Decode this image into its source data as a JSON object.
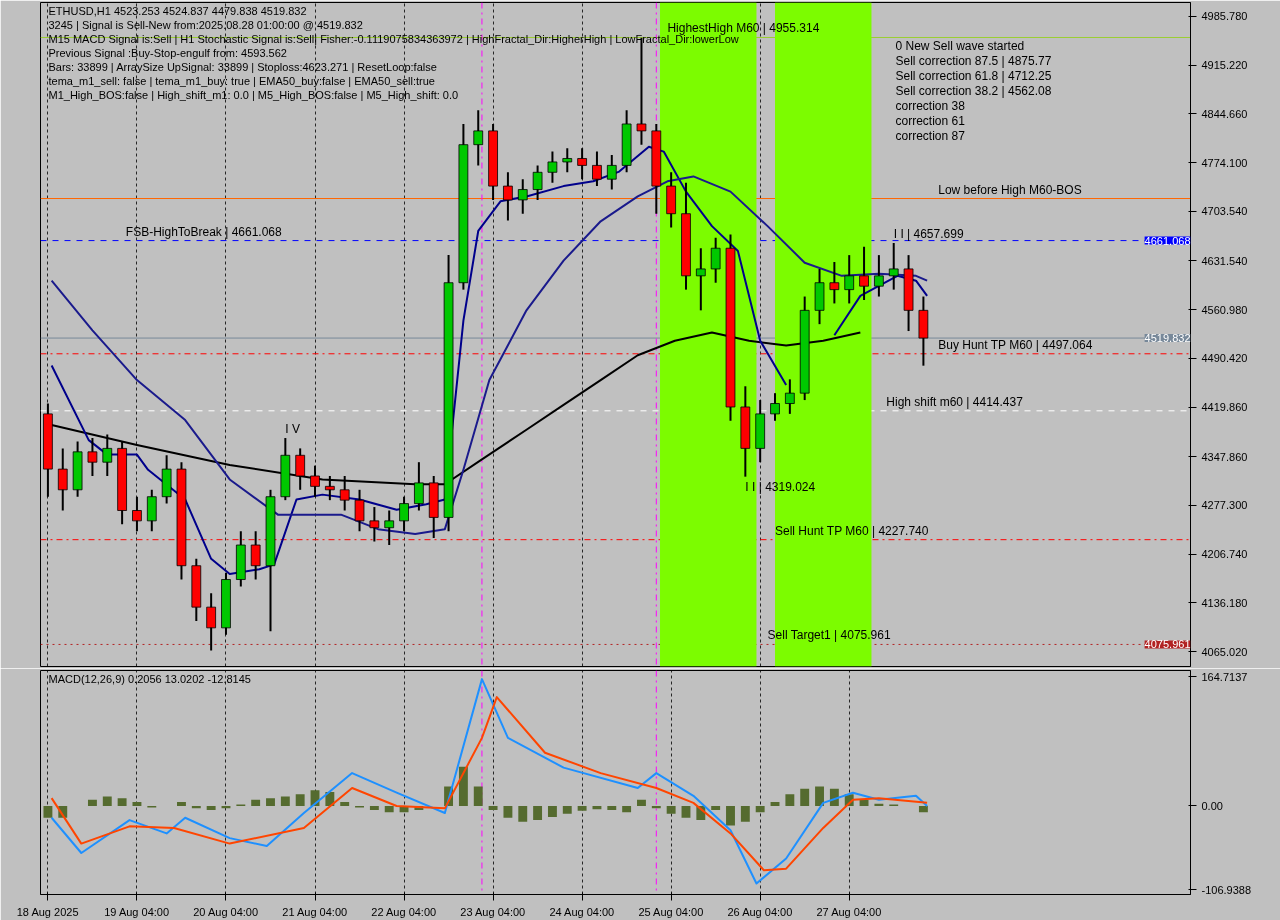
{
  "chart_data": [
    {
      "type": "candlestick",
      "title": "ETHUSD,H1  4523.253 4524.837 4479.838 4519.832",
      "x": [
        "2025-08-18T04:00",
        "2025-08-18T08:00",
        "2025-08-18T12:00",
        "2025-08-18T16:00",
        "2025-08-18T20:00",
        "2025-08-19T00:00",
        "2025-08-19T04:00",
        "2025-08-19T08:00",
        "2025-08-19T12:00",
        "2025-08-19T16:00",
        "2025-08-19T20:00",
        "2025-08-20T00:00",
        "2025-08-20T04:00",
        "2025-08-20T08:00",
        "2025-08-20T12:00",
        "2025-08-20T16:00",
        "2025-08-20T20:00",
        "2025-08-21T00:00",
        "2025-08-21T04:00",
        "2025-08-21T08:00",
        "2025-08-21T12:00",
        "2025-08-21T16:00",
        "2025-08-21T20:00",
        "2025-08-22T00:00",
        "2025-08-22T04:00",
        "2025-08-22T08:00",
        "2025-08-22T12:00",
        "2025-08-22T16:00",
        "2025-08-22T20:00",
        "2025-08-23T00:00",
        "2025-08-23T04:00",
        "2025-08-23T08:00",
        "2025-08-23T12:00",
        "2025-08-23T16:00",
        "2025-08-23T20:00",
        "2025-08-24T00:00",
        "2025-08-24T04:00",
        "2025-08-24T08:00",
        "2025-08-24T12:00",
        "2025-08-24T16:00",
        "2025-08-24T20:00",
        "2025-08-25T00:00",
        "2025-08-25T04:00",
        "2025-08-25T08:00",
        "2025-08-25T12:00",
        "2025-08-25T16:00",
        "2025-08-25T20:00",
        "2025-08-26T00:00",
        "2025-08-26T04:00",
        "2025-08-26T08:00",
        "2025-08-26T12:00",
        "2025-08-26T16:00",
        "2025-08-26T20:00",
        "2025-08-27T00:00",
        "2025-08-27T04:00",
        "2025-08-27T08:00",
        "2025-08-27T12:00",
        "2025-08-27T16:00",
        "2025-08-27T20:00",
        "2025-08-28T00:00"
      ],
      "ohlc": [
        [
          4410,
          4425,
          4290,
          4330
        ],
        [
          4330,
          4360,
          4270,
          4300
        ],
        [
          4300,
          4370,
          4290,
          4355
        ],
        [
          4355,
          4375,
          4320,
          4340
        ],
        [
          4340,
          4380,
          4320,
          4360
        ],
        [
          4360,
          4370,
          4250,
          4270
        ],
        [
          4270,
          4290,
          4240,
          4255
        ],
        [
          4255,
          4300,
          4240,
          4290
        ],
        [
          4290,
          4350,
          4280,
          4330
        ],
        [
          4330,
          4340,
          4170,
          4190
        ],
        [
          4190,
          4200,
          4110,
          4130
        ],
        [
          4130,
          4150,
          4067,
          4100
        ],
        [
          4100,
          4180,
          4090,
          4170
        ],
        [
          4170,
          4240,
          4160,
          4220
        ],
        [
          4220,
          4240,
          4170,
          4190
        ],
        [
          4190,
          4300,
          4095,
          4290
        ],
        [
          4290,
          4375,
          4285,
          4350
        ],
        [
          4350,
          4360,
          4300,
          4320
        ],
        [
          4320,
          4335,
          4290,
          4305
        ],
        [
          4305,
          4320,
          4285,
          4300
        ],
        [
          4300,
          4320,
          4270,
          4285
        ],
        [
          4285,
          4300,
          4240,
          4255
        ],
        [
          4255,
          4275,
          4225,
          4245
        ],
        [
          4245,
          4270,
          4220,
          4255
        ],
        [
          4255,
          4290,
          4240,
          4280
        ],
        [
          4280,
          4340,
          4270,
          4310
        ],
        [
          4310,
          4320,
          4230,
          4260
        ],
        [
          4260,
          4640,
          4240,
          4600
        ],
        [
          4600,
          4830,
          4590,
          4800
        ],
        [
          4800,
          4850,
          4770,
          4820
        ],
        [
          4820,
          4830,
          4720,
          4740
        ],
        [
          4740,
          4760,
          4690,
          4720
        ],
        [
          4720,
          4750,
          4700,
          4735
        ],
        [
          4735,
          4770,
          4720,
          4760
        ],
        [
          4760,
          4790,
          4745,
          4775
        ],
        [
          4775,
          4795,
          4760,
          4780
        ],
        [
          4780,
          4795,
          4750,
          4770
        ],
        [
          4770,
          4790,
          4740,
          4750
        ],
        [
          4750,
          4785,
          4735,
          4770
        ],
        [
          4770,
          4850,
          4760,
          4830
        ],
        [
          4830,
          4955,
          4800,
          4820
        ],
        [
          4820,
          4830,
          4700,
          4740
        ],
        [
          4740,
          4760,
          4680,
          4700
        ],
        [
          4700,
          4745,
          4590,
          4610
        ],
        [
          4610,
          4650,
          4560,
          4620
        ],
        [
          4620,
          4665,
          4600,
          4650
        ],
        [
          4650,
          4670,
          4400,
          4420
        ],
        [
          4420,
          4450,
          4319.024,
          4360
        ],
        [
          4360,
          4430,
          4340,
          4410
        ],
        [
          4410,
          4440,
          4400,
          4425
        ],
        [
          4425,
          4460,
          4410,
          4440
        ],
        [
          4440,
          4580,
          4430,
          4560
        ],
        [
          4560,
          4620,
          4540,
          4600
        ],
        [
          4600,
          4630,
          4570,
          4590
        ],
        [
          4590,
          4640,
          4570,
          4610
        ],
        [
          4610,
          4652,
          4575,
          4595
        ],
        [
          4595,
          4640,
          4580,
          4610
        ],
        [
          4610,
          4657.699,
          4590,
          4620
        ],
        [
          4620,
          4640,
          4530,
          4560
        ],
        [
          4560,
          4580,
          4479.838,
          4519.832
        ]
      ],
      "colors": [
        "#ff0000",
        "#ff0000",
        "#00c800",
        "#ff0000",
        "#00c800",
        "#ff0000",
        "#ff0000",
        "#00c800",
        "#00c800",
        "#ff0000",
        "#ff0000",
        "#ff0000",
        "#00c800",
        "#00c800",
        "#ff0000",
        "#00c800",
        "#00c800",
        "#ff0000",
        "#ff0000",
        "#ff0000",
        "#ff0000",
        "#ff0000",
        "#ff0000",
        "#00c800",
        "#00c800",
        "#00c800",
        "#ff0000",
        "#00c800",
        "#00c800",
        "#00c800",
        "#ff0000",
        "#ff0000",
        "#00c800",
        "#00c800",
        "#00c800",
        "#00c800",
        "#ff0000",
        "#ff0000",
        "#00c800",
        "#00c800",
        "#ff0000",
        "#ff0000",
        "#ff0000",
        "#ff0000",
        "#00c800",
        "#00c800",
        "#ff0000",
        "#ff0000",
        "#00c800",
        "#00c800",
        "#00c800",
        "#00c800",
        "#00c800",
        "#ff0000",
        "#00c800",
        "#ff0000",
        "#00c800",
        "#00c800",
        "#ff0000",
        "#ff0000"
      ],
      "series": [
        {
          "type": "line",
          "color": "#000000",
          "x": [
            "2025-08-18T05:00",
            "2025-08-19T04:00",
            "2025-08-20T05:00",
            "2025-08-21T06:00",
            "2025-08-22T07:00",
            "2025-08-22T15:00",
            "2025-08-23T01:00",
            "2025-08-23T13:00",
            "2025-08-23T23:00",
            "2025-08-24T09:00",
            "2025-08-24T19:00",
            "2025-08-25T05:00",
            "2025-08-25T15:00",
            "2025-08-26T01:00",
            "2025-08-26T11:00",
            "2025-08-26T21:00",
            "2025-08-27T07:00"
          ],
          "values": [
            4394,
            4365,
            4336,
            4315,
            4308,
            4308,
            4344,
            4387,
            4423,
            4459,
            4495,
            4516,
            4528,
            4516,
            4509,
            4516,
            4528
          ]
        },
        {
          "type": "line",
          "color": "#00008b",
          "x": [
            "2025-08-18T05:00",
            "2025-08-18T15:00",
            "2025-08-18T20:00",
            "2025-08-19T04:00",
            "2025-08-19T07:00",
            "2025-08-19T17:00",
            "2025-08-20T00:00",
            "2025-08-20T05:00",
            "2025-08-20T13:00",
            "2025-08-20T17:00",
            "2025-08-20T23:00",
            "2025-08-21T06:00",
            "2025-08-21T16:00",
            "2025-08-22T02:00",
            "2025-08-22T10:00",
            "2025-08-22T15:00",
            "2025-08-22T20:00",
            "2025-08-23T00:00",
            "2025-08-23T06:00",
            "2025-08-23T13:00",
            "2025-08-23T23:00",
            "2025-08-24T07:00",
            "2025-08-24T14:00",
            "2025-08-24T22:00",
            "2025-08-25T02:00",
            "2025-08-25T08:00",
            "2025-08-25T15:00",
            "2025-08-25T22:00",
            "2025-08-26T04:00",
            "2025-08-26T11:00",
            "2025-08-26T16:00",
            "2025-08-27T00:00",
            "2025-08-27T07:00",
            "2025-08-27T17:00",
            "2025-08-27T22:00",
            "2025-08-28T01:00"
          ],
          "values": [
            4480,
            4372,
            4351,
            4351,
            4329,
            4286,
            4200,
            4178,
            4185,
            4192,
            4286,
            4293,
            4286,
            4271,
            4279,
            4286,
            4545,
            4675,
            4718,
            4725,
            4740,
            4747,
            4761,
            4797,
            4790,
            4732,
            4682,
            4646,
            4516,
            4452,
            null,
            4524,
            4581,
            4610,
            4603,
            4581
          ]
        },
        {
          "type": "line",
          "color": "#1a1a8c",
          "x": [
            "2025-08-18T05:00",
            "2025-08-18T16:00",
            "2025-08-19T04:00",
            "2025-08-19T17:00",
            "2025-08-20T05:00",
            "2025-08-20T18:00",
            "2025-08-21T01:00",
            "2025-08-21T11:00",
            "2025-08-21T21:00",
            "2025-08-22T07:00",
            "2025-08-22T15:00",
            "2025-08-22T20:00",
            "2025-08-23T03:00",
            "2025-08-23T13:00",
            "2025-08-23T23:00",
            "2025-08-24T09:00",
            "2025-08-24T19:00",
            "2025-08-25T03:00",
            "2025-08-25T10:00",
            "2025-08-25T20:00",
            "2025-08-26T06:00",
            "2025-08-26T16:00",
            "2025-08-27T02:00",
            "2025-08-27T12:00",
            "2025-08-27T22:00",
            "2025-08-28T01:00"
          ],
          "values": [
            4603,
            4531,
            4459,
            4401,
            4315,
            4264,
            4264,
            4264,
            4243,
            4236,
            4243,
            4329,
            4459,
            4560,
            4632,
            4689,
            4725,
            4747,
            4754,
            4732,
            4682,
            4629,
            4610,
            4613,
            4610,
            4603
          ]
        }
      ],
      "bands": [
        {
          "axis": "x",
          "from": "2025-08-25T01:00",
          "to": "2025-08-26T03:00",
          "color": "#7cfc00"
        },
        {
          "axis": "x",
          "from": "2025-08-26T08:00",
          "to": "2025-08-27T10:00",
          "color": "#7cfc00"
        }
      ],
      "ref_lines": [
        {
          "axis": "y",
          "value": 4661.068,
          "color": "#0000ff",
          "line_style": "dashed"
        },
        {
          "axis": "y",
          "value": 4519.832,
          "color": "#778899",
          "line_style": "solid"
        },
        {
          "axis": "y",
          "value": 4955.314,
          "color": "#9acd32",
          "line_style": "solid"
        },
        {
          "axis": "y",
          "value": 4722,
          "color": "#ff6600",
          "line_style": "solid"
        },
        {
          "axis": "y",
          "value": 4497.064,
          "color": "#ff0000",
          "line_style": "dashdot"
        },
        {
          "axis": "y",
          "value": 4414.437,
          "color": "#ffffff",
          "line_style": "dashed"
        },
        {
          "axis": "y",
          "value": 4227.74,
          "color": "#ff0000",
          "line_style": "dashdot"
        },
        {
          "axis": "y",
          "value": 4075.961,
          "color": "#b22222",
          "line_style": "dotted"
        },
        {
          "axis": "x",
          "value": "2025-08-23T01:00",
          "color": "#ff00ff",
          "line_style": "dashdot"
        },
        {
          "axis": "x",
          "value": "2025-08-25T00:00",
          "color": "#ff00ff",
          "line_style": "dashdot"
        }
      ],
      "annotations": [
        "3245 | Signal is Sell-New from:2025.08.28 01:00:00 @ 4519.832",
        "M15 MACD Signal is:Sell | H1 Stochastic Signal is:Sell| Fisher:-0.1119075834363972 | HighFractal_Dir:HigherHigh | LowFractal_Dir:lowerLow",
        "Previous Signal :Buy-Stop-engulf from: 4593.562",
        "Bars: 33899 | ArraySize UpSignal: 33899 | Stoploss:4623.271 | ResetLoop:false",
        "tema_m1_sell: false | tema_m1_buy: true | EMA50_buy:false | EMA50_sell:true",
        "M1_High_BOS:false | High_shift_m1: 0.0 | M5_High_BOS:false | M5_High_shift: 0.0",
        "0 New Sell wave started",
        "Sell correction 87.5 | 4875.77",
        "Sell correction 61.8 | 4712.25",
        "Sell correction 38.2 | 4562.08",
        "correction 38",
        "correction 61",
        "correction 87",
        {
          "text": "FSB-HighToBreak | 4661.068",
          "x": "2025-08-19T01:00",
          "y": 4661.068
        },
        {
          "text": "HighestHigh   M60 | 4955.314",
          "x": "2025-08-25T03:00",
          "y": 4955.314
        },
        {
          "text": "Low before High   M60-BOS",
          "x": "2025-08-28T04:00",
          "y": 4722
        },
        {
          "text": "I I | 4657.699",
          "x": "2025-08-27T16:00",
          "y": 4657.699
        },
        {
          "text": "Buy Hunt TP M60 | 4497.064",
          "x": "2025-08-28T04:00",
          "y": 4497.064
        },
        {
          "text": "High shift m60 | 4414.437",
          "x": "2025-08-27T14:00",
          "y": 4414.437
        },
        {
          "text": "I V",
          "x": "2025-08-20T20:00",
          "y": 4375
        },
        {
          "text": "I I | 4319.024",
          "x": "2025-08-26T00:00",
          "y": 4319.024
        },
        {
          "text": "Sell Hunt TP M60 | 4227.740",
          "x": "2025-08-26T08:00",
          "y": 4227.74
        },
        {
          "text": "Sell Target1 | 4075.961",
          "x": "2025-08-26T06:00",
          "y": 4075.961
        },
        {
          "text": "4661.068",
          "y": 4661.068
        },
        {
          "text": "4519.832",
          "y": 4519.832
        },
        {
          "text": "4075.961",
          "y": 4075.961
        }
      ],
      "xlim": [
        "2025-08-18T02:00",
        "2025-08-31T00:00"
      ],
      "ylim": [
        4044,
        5006
      ],
      "xticks": [
        {
          "value": "2025-08-18T04:00",
          "label": null
        },
        {
          "value": "2025-08-19T04:00",
          "label": null
        },
        {
          "value": "2025-08-20T04:00",
          "label": null
        },
        {
          "value": "2025-08-21T04:00",
          "label": null
        },
        {
          "value": "2025-08-22T04:00",
          "label": null
        },
        {
          "value": "2025-08-23T04:00",
          "label": null
        },
        {
          "value": "2025-08-24T04:00",
          "label": null
        },
        {
          "value": "2025-08-25T04:00",
          "label": null
        },
        {
          "value": "2025-08-26T04:00",
          "label": null
        },
        {
          "value": "2025-08-27T04:00",
          "label": null
        }
      ],
      "yticks": [
        {
          "value": 4985.78,
          "label": "4985.780"
        },
        {
          "value": 4915.22,
          "label": "4915.220"
        },
        {
          "value": 4844.66,
          "label": "4844.660"
        },
        {
          "value": 4774.1,
          "label": "4774.100"
        },
        {
          "value": 4703.54,
          "label": "4703.540"
        },
        {
          "value": 4631.54,
          "label": "4631.540"
        },
        {
          "value": 4560.98,
          "label": "4560.980"
        },
        {
          "value": 4490.42,
          "label": "4490.420"
        },
        {
          "value": 4419.86,
          "label": "4419.860"
        },
        {
          "value": 4347.86,
          "label": "4347.860"
        },
        {
          "value": 4277.3,
          "label": "4277.300"
        },
        {
          "value": 4206.74,
          "label": "4206.740"
        },
        {
          "value": 4136.18,
          "label": "4136.180"
        },
        {
          "value": 4065.02,
          "label": "4065.020"
        }
      ],
      "tick_labels": "y",
      "grid": "x"
    },
    {
      "type": "bar",
      "title": "MACD(12,26,9) 0.2056 13.0202 -12.8145",
      "x": [
        "2025-08-18T04:00",
        "2025-08-18T08:00",
        "2025-08-18T12:00",
        "2025-08-18T16:00",
        "2025-08-18T20:00",
        "2025-08-19T00:00",
        "2025-08-19T04:00",
        "2025-08-19T08:00",
        "2025-08-19T12:00",
        "2025-08-19T16:00",
        "2025-08-19T20:00",
        "2025-08-20T00:00",
        "2025-08-20T04:00",
        "2025-08-20T08:00",
        "2025-08-20T12:00",
        "2025-08-20T16:00",
        "2025-08-20T20:00",
        "2025-08-21T00:00",
        "2025-08-21T04:00",
        "2025-08-21T08:00",
        "2025-08-21T12:00",
        "2025-08-21T16:00",
        "2025-08-21T20:00",
        "2025-08-22T00:00",
        "2025-08-22T04:00",
        "2025-08-22T08:00",
        "2025-08-22T12:00",
        "2025-08-22T16:00",
        "2025-08-22T20:00",
        "2025-08-23T00:00",
        "2025-08-23T04:00",
        "2025-08-23T08:00",
        "2025-08-23T12:00",
        "2025-08-23T16:00",
        "2025-08-23T20:00",
        "2025-08-24T00:00",
        "2025-08-24T04:00",
        "2025-08-24T08:00",
        "2025-08-24T12:00",
        "2025-08-24T16:00",
        "2025-08-24T20:00",
        "2025-08-25T00:00",
        "2025-08-25T04:00",
        "2025-08-25T08:00",
        "2025-08-25T12:00",
        "2025-08-25T16:00",
        "2025-08-25T20:00",
        "2025-08-26T00:00",
        "2025-08-26T04:00",
        "2025-08-26T08:00",
        "2025-08-26T12:00",
        "2025-08-26T16:00",
        "2025-08-26T20:00",
        "2025-08-27T00:00",
        "2025-08-27T04:00",
        "2025-08-27T08:00",
        "2025-08-27T12:00",
        "2025-08-27T16:00",
        "2025-08-27T20:00",
        "2025-08-28T00:00"
      ],
      "series": [
        {
          "type": "bar",
          "color": "#556b2f",
          "values": [
            -15,
            -15,
            0,
            8,
            12,
            10,
            5,
            -2,
            0,
            5,
            -3,
            -5,
            -3,
            2,
            8,
            10,
            12,
            15,
            20,
            18,
            5,
            -2,
            -5,
            -8,
            -8,
            -5,
            0,
            25,
            50,
            25,
            -5,
            -15,
            -20,
            -18,
            -14,
            -10,
            -6,
            -4,
            -5,
            -8,
            8,
            -3,
            -10,
            -15,
            -18,
            -5,
            -25,
            -20,
            -8,
            5,
            15,
            22,
            25,
            22,
            15,
            8,
            3,
            2,
            0,
            -8
          ]
        },
        {
          "type": "line",
          "color": "#1e90ff",
          "x": [
            "2025-08-18T05:00",
            "2025-08-18T13:00",
            "2025-08-19T02:00",
            "2025-08-19T12:00",
            "2025-08-19T17:00",
            "2025-08-20T05:00",
            "2025-08-20T15:00",
            "2025-08-21T01:00",
            "2025-08-21T14:00",
            "2025-08-22T02:00",
            "2025-08-22T15:00",
            "2025-08-23T01:00",
            "2025-08-23T08:00",
            "2025-08-23T23:00",
            "2025-08-24T19:00",
            "2025-08-25T00:00",
            "2025-08-25T10:00",
            "2025-08-25T20:00",
            "2025-08-26T03:00",
            "2025-08-26T11:00",
            "2025-08-26T21:00",
            "2025-08-27T05:00",
            "2025-08-27T12:00",
            "2025-08-27T22:00",
            "2025-08-28T01:00"
          ],
          "values": [
            -15,
            -60,
            -18,
            -35,
            -15,
            -41,
            -51,
            -9,
            42,
            17,
            -9,
            162,
            87,
            49,
            23,
            42,
            13,
            -31,
            -99,
            -67,
            4,
            17,
            8,
            13,
            0
          ]
        },
        {
          "type": "line",
          "color": "#ff4500",
          "x": [
            "2025-08-18T05:00",
            "2025-08-18T13:00",
            "2025-08-19T02:00",
            "2025-08-19T14:00",
            "2025-08-20T05:00",
            "2025-08-21T01:00",
            "2025-08-21T14:00",
            "2025-08-22T02:00",
            "2025-08-22T15:00",
            "2025-08-23T01:00",
            "2025-08-23T05:00",
            "2025-08-23T18:00",
            "2025-08-24T09:00",
            "2025-08-25T00:00",
            "2025-08-25T10:00",
            "2025-08-25T20:00",
            "2025-08-26T05:00",
            "2025-08-26T11:00",
            "2025-08-26T21:00",
            "2025-08-27T05:00",
            "2025-08-27T12:00",
            "2025-08-28T01:00"
          ],
          "values": [
            10,
            -48,
            -26,
            -28,
            -48,
            -28,
            23,
            0,
            -3,
            87,
            139,
            68,
            42,
            23,
            4,
            -35,
            -82,
            -80,
            -28,
            8,
            10,
            4
          ]
        }
      ],
      "ref_lines": [
        {
          "axis": "x",
          "value": "2025-08-23T01:00",
          "color": "#ff00ff",
          "line_style": "dashdot"
        },
        {
          "axis": "x",
          "value": "2025-08-25T00:00",
          "color": "#ff00ff",
          "line_style": "dashdot"
        }
      ],
      "xlim": [
        "2025-08-18T02:00",
        "2025-08-31T00:00"
      ],
      "ylim": [
        -113,
        173
      ],
      "xticks": [
        {
          "value": "2025-08-18T04:00",
          "label": "18 Aug 2025"
        },
        {
          "value": "2025-08-19T04:00",
          "label": "19 Aug 04:00"
        },
        {
          "value": "2025-08-20T04:00",
          "label": "20 Aug 04:00"
        },
        {
          "value": "2025-08-21T04:00",
          "label": "21 Aug 04:00"
        },
        {
          "value": "2025-08-22T04:00",
          "label": "22 Aug 04:00"
        },
        {
          "value": "2025-08-23T04:00",
          "label": "23 Aug 04:00"
        },
        {
          "value": "2025-08-24T04:00",
          "label": "24 Aug 04:00"
        },
        {
          "value": "2025-08-25T04:00",
          "label": "25 Aug 04:00"
        },
        {
          "value": "2025-08-26T04:00",
          "label": "26 Aug 04:00"
        },
        {
          "value": "2025-08-27T04:00",
          "label": "27 Aug 04:00"
        }
      ],
      "yticks": [
        164.7137,
        {
          "value": 0,
          "label": "0.00"
        },
        -106.9388
      ],
      "grid": "x"
    }
  ]
}
